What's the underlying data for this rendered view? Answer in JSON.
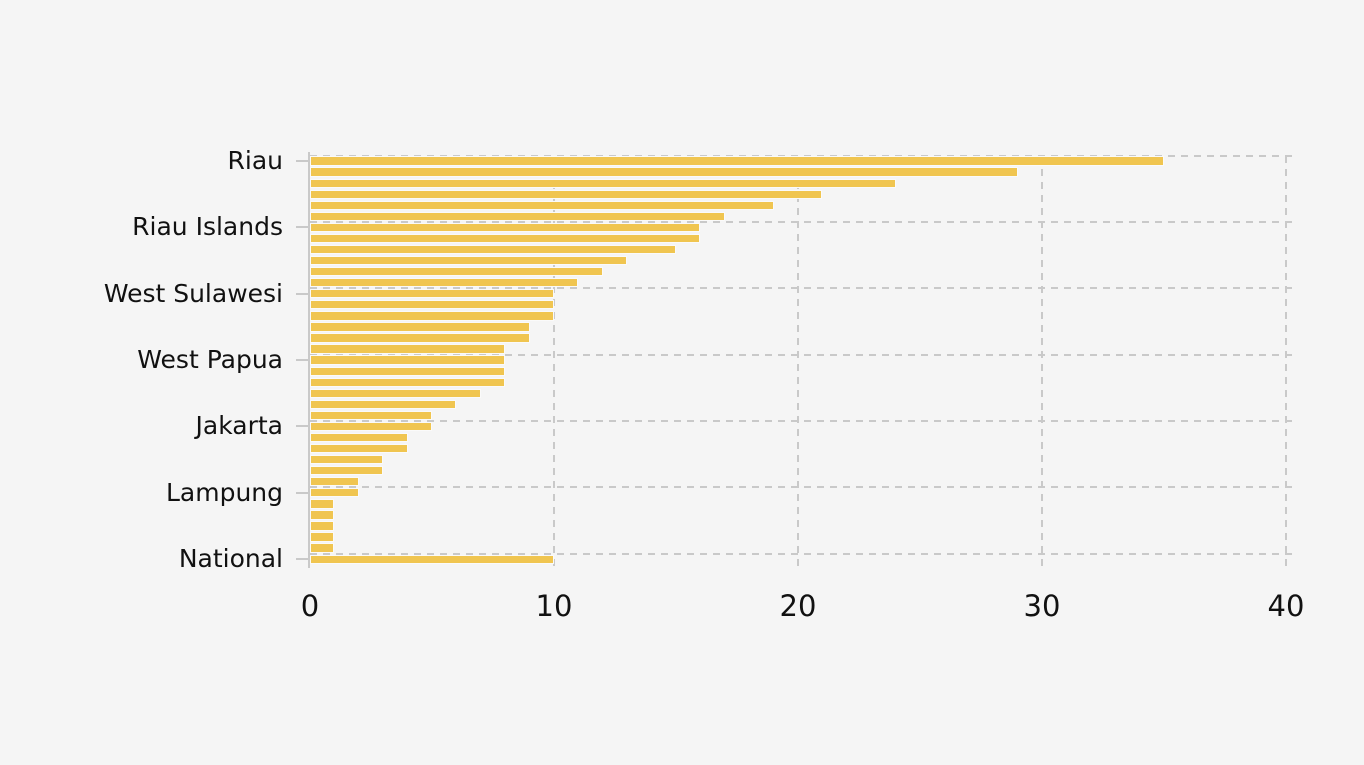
{
  "chart_data": {
    "type": "bar",
    "orientation": "horizontal",
    "title": "",
    "xlabel": "",
    "ylabel": "",
    "xlim": [
      0,
      40
    ],
    "xticks": [
      0,
      10,
      20,
      30,
      40
    ],
    "grid": true,
    "grid_style": "dashed",
    "legend_position": "none",
    "ytick_labels": [
      "Riau",
      "Riau Islands",
      "West Sulawesi",
      "West Papua",
      "Jakarta",
      "Lampung",
      "National"
    ],
    "label_every_n_bars": 6,
    "bars": [
      {
        "label": "Riau",
        "value": 35
      },
      {
        "label": "",
        "value": 29
      },
      {
        "label": "",
        "value": 24
      },
      {
        "label": "",
        "value": 21
      },
      {
        "label": "",
        "value": 19
      },
      {
        "label": "",
        "value": 17
      },
      {
        "label": "Riau Islands",
        "value": 16
      },
      {
        "label": "",
        "value": 16
      },
      {
        "label": "",
        "value": 15
      },
      {
        "label": "",
        "value": 13
      },
      {
        "label": "",
        "value": 12
      },
      {
        "label": "",
        "value": 11
      },
      {
        "label": "West Sulawesi",
        "value": 10
      },
      {
        "label": "",
        "value": 10
      },
      {
        "label": "",
        "value": 10
      },
      {
        "label": "",
        "value": 9
      },
      {
        "label": "",
        "value": 9
      },
      {
        "label": "",
        "value": 8
      },
      {
        "label": "West Papua",
        "value": 8
      },
      {
        "label": "",
        "value": 8
      },
      {
        "label": "",
        "value": 8
      },
      {
        "label": "",
        "value": 7
      },
      {
        "label": "",
        "value": 6
      },
      {
        "label": "",
        "value": 5
      },
      {
        "label": "Jakarta",
        "value": 5
      },
      {
        "label": "",
        "value": 4
      },
      {
        "label": "",
        "value": 4
      },
      {
        "label": "",
        "value": 3
      },
      {
        "label": "",
        "value": 3
      },
      {
        "label": "",
        "value": 2
      },
      {
        "label": "Lampung",
        "value": 2
      },
      {
        "label": "",
        "value": 1
      },
      {
        "label": "",
        "value": 1
      },
      {
        "label": "",
        "value": 1
      },
      {
        "label": "",
        "value": 1
      },
      {
        "label": "",
        "value": 1
      },
      {
        "label": "National",
        "value": 10
      }
    ],
    "colors": {
      "bar": "#f0c550",
      "grid": "#c9c9c9",
      "background": "#f5f5f5",
      "text": "#111111",
      "bar_edge": "#fafafa"
    }
  }
}
